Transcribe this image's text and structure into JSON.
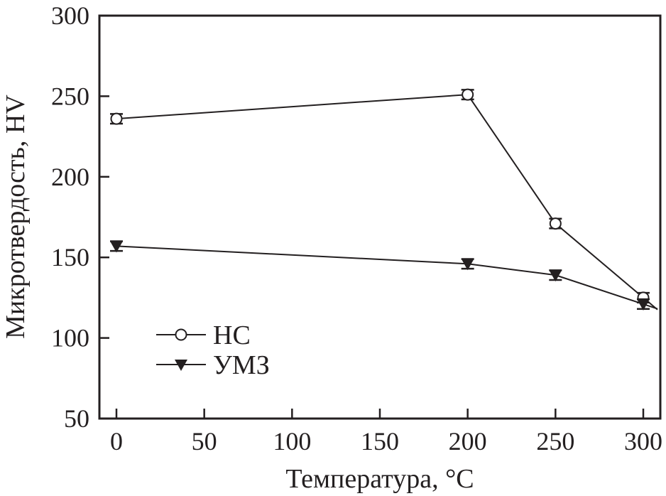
{
  "chart_data": {
    "type": "line",
    "title": "",
    "xlabel": "Температура, °C",
    "ylabel": "Микротвердость, HV",
    "xlim": [
      -10,
      310
    ],
    "ylim": [
      50,
      300
    ],
    "xticks": [
      0,
      50,
      100,
      150,
      200,
      250,
      300
    ],
    "yticks": [
      50,
      100,
      150,
      200,
      250,
      300
    ],
    "grid": false,
    "legend_position": "bottom-left",
    "series": [
      {
        "name": "НС",
        "marker": "open-circle",
        "x": [
          0,
          200,
          250,
          300
        ],
        "y": [
          236,
          251,
          171,
          125
        ],
        "error": [
          3,
          3,
          3,
          3
        ]
      },
      {
        "name": "УМЗ",
        "marker": "filled-triangle-down",
        "x": [
          0,
          200,
          250,
          300
        ],
        "y": [
          157,
          146,
          139,
          121
        ],
        "error": [
          3,
          3,
          3,
          3
        ]
      }
    ],
    "colors": {
      "ink": "#231f20"
    }
  }
}
